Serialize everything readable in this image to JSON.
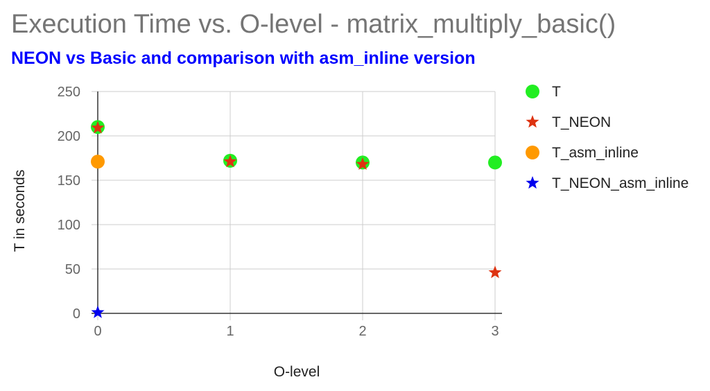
{
  "chart_data": {
    "type": "scatter",
    "title": "Execution Time vs. O-level - matrix_multiply_basic()",
    "subtitle": "NEON vs Basic and comparison with asm_inline version",
    "xlabel": "O-level",
    "ylabel": "T in seconds",
    "xlim": [
      0,
      3
    ],
    "ylim": [
      0,
      250
    ],
    "x_ticks": [
      "0",
      "1",
      "2",
      "3"
    ],
    "y_ticks": [
      "0",
      "50",
      "100",
      "150",
      "200",
      "250"
    ],
    "grid": true,
    "legend_position": "right",
    "series": [
      {
        "name": "T",
        "marker": "circle",
        "color": "#22ee22",
        "points": [
          [
            0,
            210
          ],
          [
            1,
            172
          ],
          [
            2,
            170
          ],
          [
            3,
            170
          ]
        ]
      },
      {
        "name": "T_NEON",
        "marker": "star",
        "color": "#dd3311",
        "points": [
          [
            0,
            209
          ],
          [
            1,
            171
          ],
          [
            2,
            168
          ],
          [
            3,
            46
          ]
        ]
      },
      {
        "name": "T_asm_inline",
        "marker": "circle",
        "color": "#ff9900",
        "points": [
          [
            0,
            171
          ]
        ]
      },
      {
        "name": "T_NEON_asm_inline",
        "marker": "star",
        "color": "#0000ee",
        "points": [
          [
            0,
            1
          ]
        ]
      }
    ]
  }
}
